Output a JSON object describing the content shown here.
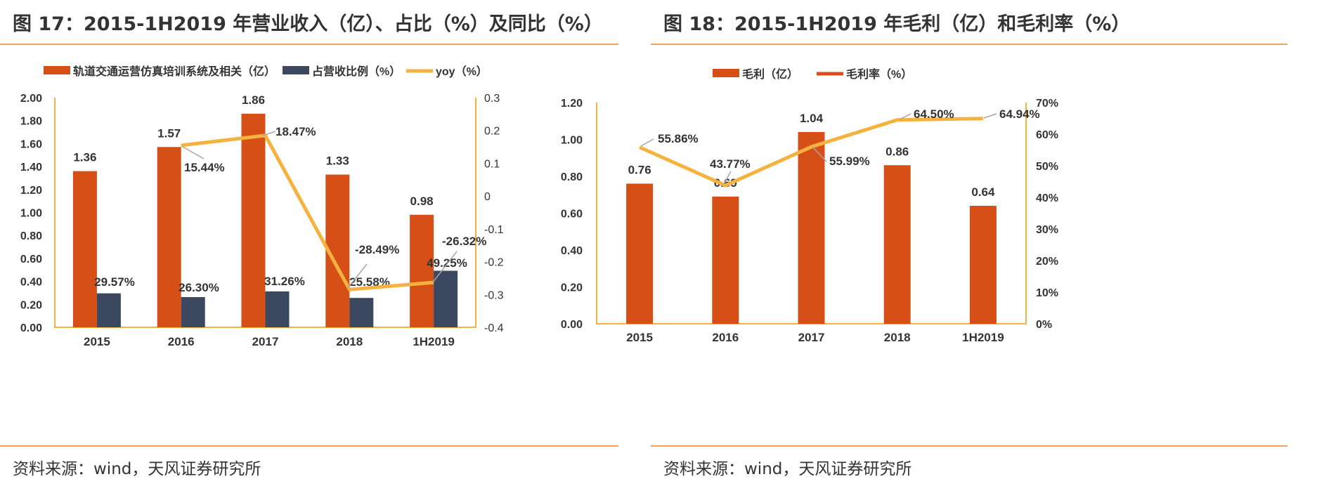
{
  "colors": {
    "bar_primary": "#d64f16",
    "bar_secondary": "#3b4860",
    "line": "#f5b23f",
    "axis": "#f5b23f",
    "text": "#333333",
    "rule": "#f0a35e",
    "leader": "#a6a6a6"
  },
  "left": {
    "title": "图 17：2015-1H2019 年营业收入（亿）、占比（%）及同比（%）",
    "source": "资料来源：wind，天风证券研究所"
  },
  "right": {
    "title": "图 18：2015-1H2019 年毛利（亿）和毛利率（%）",
    "source": "资料来源：wind，天风证券研究所"
  },
  "chart_data": [
    {
      "type": "bar",
      "categories": [
        "2015",
        "2016",
        "2017",
        "2018",
        "1H2019"
      ],
      "series": [
        {
          "name": "轨道交通运营仿真培训系统及相关（亿）",
          "kind": "bar",
          "axis": "left",
          "values": [
            1.36,
            1.57,
            1.86,
            1.33,
            0.98
          ],
          "labels": [
            "1.36",
            "1.57",
            "1.86",
            "1.33",
            "0.98"
          ]
        },
        {
          "name": "占营收比例（%）",
          "kind": "bar",
          "axis": "left",
          "values": [
            0.2957,
            0.263,
            0.3126,
            0.2558,
            0.4925
          ],
          "labels": [
            "29.57%",
            "26.30%",
            "31.26%",
            "25.58%",
            "49.25%"
          ]
        },
        {
          "name": "yoy（%）",
          "kind": "line",
          "axis": "right",
          "values": [
            null,
            0.1544,
            0.1847,
            -0.2849,
            -0.2632
          ],
          "labels": [
            null,
            "15.44%",
            "18.47%",
            "-28.49%",
            "-26.32%"
          ]
        }
      ],
      "ylim": [
        0,
        2.0
      ],
      "yticks": [
        "0.00",
        "0.20",
        "0.40",
        "0.60",
        "0.80",
        "1.00",
        "1.20",
        "1.40",
        "1.60",
        "1.80",
        "2.00"
      ],
      "y2lim": [
        -0.4,
        0.3
      ],
      "y2ticks": [
        "-0.4",
        "-0.3",
        "-0.2",
        "-0.1",
        "0",
        "0.1",
        "0.2",
        "0.3"
      ],
      "legend": "top"
    },
    {
      "type": "bar",
      "categories": [
        "2015",
        "2016",
        "2017",
        "2018",
        "1H2019"
      ],
      "series": [
        {
          "name": "毛利（亿）",
          "kind": "bar",
          "axis": "left",
          "values": [
            0.76,
            0.69,
            1.04,
            0.86,
            0.64
          ],
          "labels": [
            "0.76",
            "0.69",
            "1.04",
            "0.86",
            "0.64"
          ]
        },
        {
          "name": "毛利率（%）",
          "kind": "line",
          "axis": "right",
          "values": [
            55.86,
            43.77,
            55.99,
            64.5,
            64.94
          ],
          "labels": [
            "55.86%",
            "43.77%",
            "55.99%",
            "64.50%",
            "64.94%"
          ]
        }
      ],
      "ylim": [
        0,
        1.2
      ],
      "yticks": [
        "0.00",
        "0.20",
        "0.40",
        "0.60",
        "0.80",
        "1.00",
        "1.20"
      ],
      "y2lim": [
        0,
        70
      ],
      "y2ticks": [
        "0%",
        "10%",
        "20%",
        "30%",
        "40%",
        "50%",
        "60%",
        "70%"
      ],
      "legend": "top"
    }
  ]
}
